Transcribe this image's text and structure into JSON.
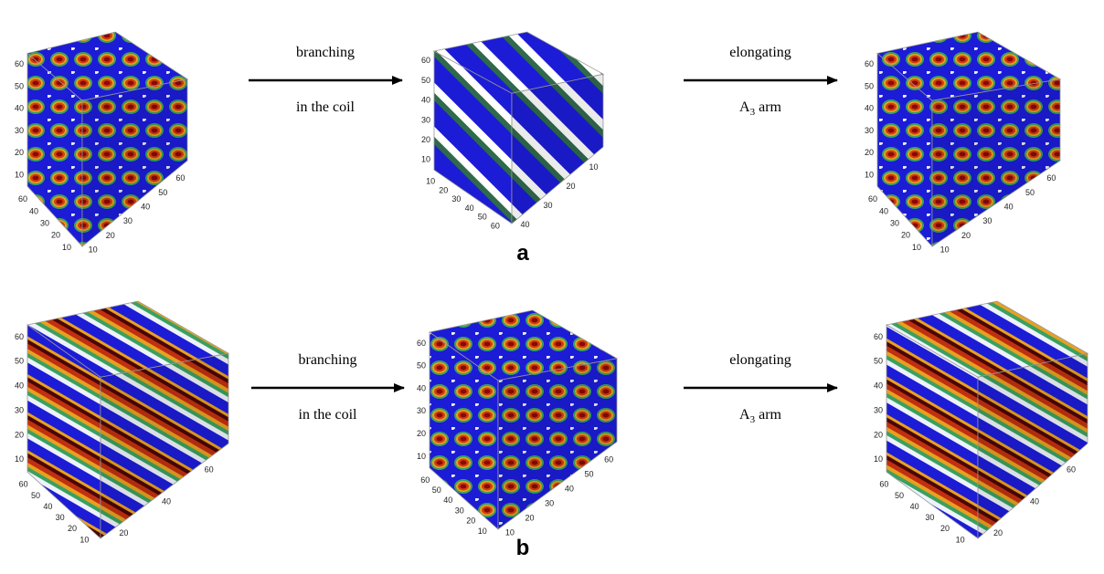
{
  "rows": [
    {
      "label": "a",
      "cubes": [
        {
          "style": "dots",
          "ticks": {
            "z": [
              10,
              20,
              30,
              40,
              50,
              60
            ],
            "left": [
              60,
              40,
              30,
              20,
              10
            ],
            "right": [
              10,
              20,
              30,
              40,
              50,
              60
            ]
          }
        },
        {
          "style": "rods",
          "ticks": {
            "z": [
              10,
              20,
              30,
              40,
              50,
              60
            ],
            "left": [
              10,
              20,
              30,
              40,
              50,
              60
            ],
            "right": [
              40,
              30,
              20,
              10
            ]
          }
        },
        {
          "style": "dots",
          "ticks": {
            "z": [
              10,
              20,
              30,
              40,
              50,
              60
            ],
            "left": [
              60,
              40,
              30,
              20,
              10
            ],
            "right": [
              10,
              20,
              30,
              40,
              50,
              60
            ]
          }
        }
      ],
      "arrows": [
        {
          "top": "branching",
          "bottom": "in the coil"
        },
        {
          "top": "elongating",
          "bottom": {
            "text": "A",
            "sub": "3",
            "after": "arm"
          }
        }
      ]
    },
    {
      "label": "b",
      "cubes": [
        {
          "style": "stripes",
          "ticks": {
            "z": [
              10,
              20,
              30,
              40,
              50,
              60
            ],
            "left": [
              60,
              50,
              40,
              30,
              20,
              10
            ],
            "right": [
              20,
              40,
              60
            ]
          }
        },
        {
          "style": "dots",
          "ticks": {
            "z": [
              10,
              20,
              30,
              40,
              50,
              60
            ],
            "left": [
              60,
              50,
              40,
              30,
              20,
              10
            ],
            "right": [
              10,
              20,
              30,
              40,
              50,
              60
            ]
          }
        },
        {
          "style": "stripes",
          "ticks": {
            "z": [
              10,
              20,
              30,
              40,
              50,
              60
            ],
            "left": [
              60,
              50,
              40,
              30,
              20,
              10
            ],
            "right": [
              20,
              40,
              60
            ]
          }
        }
      ],
      "arrows": [
        {
          "top": "branching",
          "bottom": "in the coil"
        },
        {
          "top": "elongating",
          "bottom": {
            "text": "A",
            "sub": "3",
            "after": "arm"
          }
        }
      ]
    }
  ]
}
